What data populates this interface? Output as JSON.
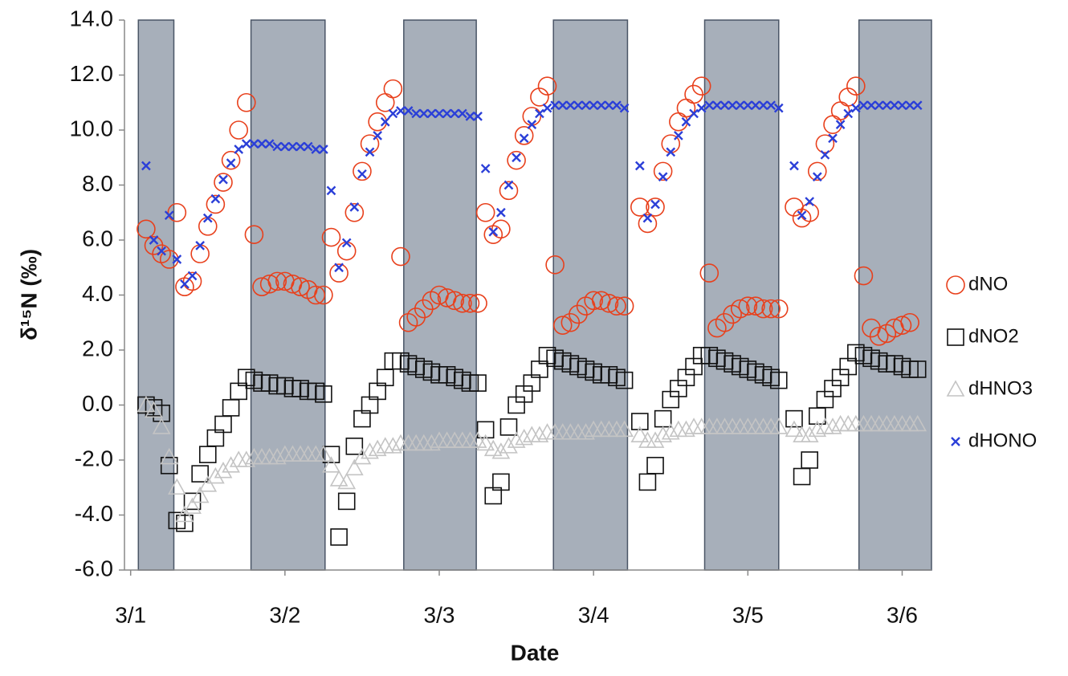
{
  "chart_data": {
    "type": "scatter",
    "xlabel": "Date",
    "ylabel": "δ¹⁵N (‰)",
    "xlim": [
      -0.04,
      5.19
    ],
    "ylim": [
      -6,
      14
    ],
    "xticks": [
      {
        "value": 0,
        "label": "3/1"
      },
      {
        "value": 1,
        "label": "3/2"
      },
      {
        "value": 2,
        "label": "3/3"
      },
      {
        "value": 3,
        "label": "3/4"
      },
      {
        "value": 4,
        "label": "3/5"
      },
      {
        "value": 5,
        "label": "3/6"
      }
    ],
    "yticks": [
      {
        "value": 14,
        "label": "14.0"
      },
      {
        "value": 12,
        "label": "12.0"
      },
      {
        "value": 10,
        "label": "10.0"
      },
      {
        "value": 8,
        "label": "8.0"
      },
      {
        "value": 6,
        "label": "6.0"
      },
      {
        "value": 4,
        "label": "4.0"
      },
      {
        "value": 2,
        "label": "2.0"
      },
      {
        "value": 0,
        "label": "0.0"
      },
      {
        "value": -2,
        "label": "-2.0"
      },
      {
        "value": -4,
        "label": "-4.0"
      },
      {
        "value": -6,
        "label": "-6.0"
      }
    ],
    "shaded": [
      [
        0.05,
        0.28
      ],
      [
        0.78,
        1.26
      ],
      [
        1.77,
        2.24
      ],
      [
        2.74,
        3.22
      ],
      [
        3.72,
        4.2
      ],
      [
        4.72,
        5.19
      ]
    ],
    "shade_color": "#a7afba",
    "legend": "right",
    "x": [
      0.1,
      0.15,
      0.2,
      0.25,
      0.3,
      0.35,
      0.4,
      0.45,
      0.5,
      0.55,
      0.6,
      0.65,
      0.7,
      0.75,
      0.8,
      0.85,
      0.9,
      0.95,
      1.0,
      1.05,
      1.1,
      1.15,
      1.2,
      1.25,
      1.3,
      1.35,
      1.4,
      1.45,
      1.5,
      1.55,
      1.6,
      1.65,
      1.7,
      1.75,
      1.8,
      1.85,
      1.9,
      1.95,
      2.0,
      2.05,
      2.1,
      2.15,
      2.2,
      2.25,
      2.3,
      2.35,
      2.4,
      2.45,
      2.5,
      2.55,
      2.6,
      2.65,
      2.7,
      2.75,
      2.8,
      2.85,
      2.9,
      2.95,
      3.0,
      3.05,
      3.1,
      3.15,
      3.2,
      3.25,
      3.3,
      3.35,
      3.4,
      3.45,
      3.5,
      3.55,
      3.6,
      3.65,
      3.7,
      3.75,
      3.8,
      3.85,
      3.9,
      3.95,
      4.0,
      4.05,
      4.1,
      4.15,
      4.2,
      4.25,
      4.3,
      4.35,
      4.4,
      4.45,
      4.5,
      4.55,
      4.6,
      4.65,
      4.7,
      4.75,
      4.8,
      4.85,
      4.9,
      4.95,
      5.0,
      5.05,
      5.1
    ],
    "series": [
      {
        "name": "dNO",
        "color": "#e8401c",
        "marker": "circle",
        "values": [
          6.4,
          5.8,
          5.5,
          5.3,
          7.0,
          4.3,
          4.5,
          5.5,
          6.5,
          7.3,
          8.1,
          8.9,
          10.0,
          11.0,
          6.2,
          4.3,
          4.4,
          4.5,
          4.5,
          4.4,
          4.3,
          4.2,
          4.0,
          4.0,
          6.1,
          4.8,
          5.6,
          7.0,
          8.5,
          9.5,
          10.3,
          11.0,
          11.5,
          5.4,
          3.0,
          3.2,
          3.5,
          3.8,
          4.0,
          3.9,
          3.8,
          3.7,
          3.7,
          3.7,
          7.0,
          6.2,
          6.4,
          7.8,
          8.9,
          9.8,
          10.5,
          11.2,
          11.6,
          5.1,
          2.9,
          3.0,
          3.3,
          3.6,
          3.8,
          3.8,
          3.7,
          3.6,
          3.6,
          null,
          7.2,
          6.6,
          7.2,
          8.5,
          9.5,
          10.3,
          10.8,
          11.3,
          11.6,
          4.8,
          2.8,
          3.0,
          3.3,
          3.5,
          3.6,
          3.6,
          3.5,
          3.5,
          3.5,
          null,
          7.2,
          6.8,
          7.0,
          8.5,
          9.5,
          10.2,
          10.7,
          11.2,
          11.6,
          4.7,
          2.8,
          2.5,
          2.6,
          2.8,
          2.9,
          3.0,
          null
        ]
      },
      {
        "name": "dNO2",
        "color": "#111111",
        "marker": "square",
        "values": [
          0.0,
          -0.1,
          -0.3,
          -2.2,
          -4.2,
          -4.3,
          -3.5,
          -2.5,
          -1.8,
          -1.2,
          -0.7,
          -0.1,
          0.5,
          1.0,
          0.9,
          0.8,
          0.8,
          0.7,
          0.7,
          0.6,
          0.6,
          0.5,
          0.5,
          0.4,
          -1.8,
          -4.8,
          -3.5,
          -1.5,
          -0.5,
          0.0,
          0.5,
          1.0,
          1.6,
          1.6,
          1.5,
          1.4,
          1.3,
          1.2,
          1.1,
          1.1,
          1.0,
          0.9,
          0.8,
          0.8,
          -0.9,
          -3.3,
          -2.8,
          -0.8,
          0.0,
          0.4,
          0.8,
          1.3,
          1.8,
          1.7,
          1.6,
          1.5,
          1.4,
          1.3,
          1.2,
          1.1,
          1.1,
          1.0,
          0.9,
          null,
          -0.6,
          -2.8,
          -2.2,
          -0.5,
          0.2,
          0.6,
          1.0,
          1.4,
          1.8,
          1.8,
          1.7,
          1.6,
          1.5,
          1.4,
          1.3,
          1.2,
          1.1,
          1.0,
          0.9,
          null,
          -0.5,
          -2.6,
          -2.0,
          -0.4,
          0.2,
          0.6,
          1.0,
          1.4,
          1.9,
          1.8,
          1.7,
          1.6,
          1.5,
          1.5,
          1.4,
          1.3,
          1.3
        ]
      },
      {
        "name": "dHNO3",
        "color": "#c4c4c4",
        "marker": "triangle",
        "values": [
          0.0,
          -0.2,
          -0.8,
          -1.9,
          -3.0,
          -4.0,
          -3.7,
          -3.3,
          -2.9,
          -2.6,
          -2.4,
          -2.2,
          -2.0,
          -2.0,
          -1.9,
          -1.9,
          -1.9,
          -1.9,
          -1.8,
          -1.8,
          -1.8,
          -1.8,
          -1.8,
          -1.8,
          -2.2,
          -2.7,
          -2.8,
          -2.3,
          -1.9,
          -1.7,
          -1.6,
          -1.5,
          -1.5,
          -1.4,
          -1.4,
          -1.4,
          -1.4,
          -1.4,
          -1.3,
          -1.3,
          -1.3,
          -1.3,
          -1.3,
          -1.3,
          -1.4,
          -1.6,
          -1.7,
          -1.5,
          -1.3,
          -1.2,
          -1.1,
          -1.1,
          -1.0,
          -1.0,
          -1.0,
          -1.0,
          -1.0,
          -1.0,
          -0.9,
          -0.9,
          -0.9,
          -0.9,
          -0.9,
          null,
          -1.1,
          -1.3,
          -1.3,
          -1.1,
          -1.0,
          -0.9,
          -0.9,
          -0.8,
          -0.8,
          -0.8,
          -0.8,
          -0.8,
          -0.8,
          -0.8,
          -0.8,
          -0.8,
          -0.8,
          -0.8,
          -0.8,
          null,
          -0.9,
          -1.1,
          -1.1,
          -0.9,
          -0.8,
          -0.8,
          -0.7,
          -0.7,
          -0.7,
          -0.7,
          -0.7,
          -0.7,
          -0.7,
          -0.7,
          -0.7,
          -0.7,
          -0.7
        ]
      },
      {
        "name": "dHONO",
        "color": "#2b3fd8",
        "marker": "cross",
        "values": [
          8.7,
          6.0,
          5.6,
          6.9,
          5.3,
          4.4,
          4.7,
          5.8,
          6.8,
          7.5,
          8.2,
          8.8,
          9.3,
          9.5,
          9.5,
          9.5,
          9.5,
          9.4,
          9.4,
          9.4,
          9.4,
          9.4,
          9.3,
          9.3,
          7.8,
          5.0,
          5.9,
          7.2,
          8.4,
          9.2,
          9.8,
          10.3,
          10.6,
          10.7,
          10.7,
          10.6,
          10.6,
          10.6,
          10.6,
          10.6,
          10.6,
          10.6,
          10.5,
          10.5,
          8.6,
          6.3,
          7.0,
          8.0,
          9.0,
          9.7,
          10.2,
          10.6,
          10.8,
          10.9,
          10.9,
          10.9,
          10.9,
          10.9,
          10.9,
          10.9,
          10.9,
          10.9,
          10.8,
          null,
          8.7,
          6.8,
          7.3,
          8.3,
          9.2,
          9.8,
          10.3,
          10.6,
          10.8,
          10.9,
          10.9,
          10.9,
          10.9,
          10.9,
          10.9,
          10.9,
          10.9,
          10.9,
          10.8,
          null,
          8.7,
          6.9,
          7.4,
          8.3,
          9.1,
          9.7,
          10.2,
          10.6,
          10.8,
          10.9,
          10.9,
          10.9,
          10.9,
          10.9,
          10.9,
          10.9,
          10.9
        ]
      }
    ]
  }
}
